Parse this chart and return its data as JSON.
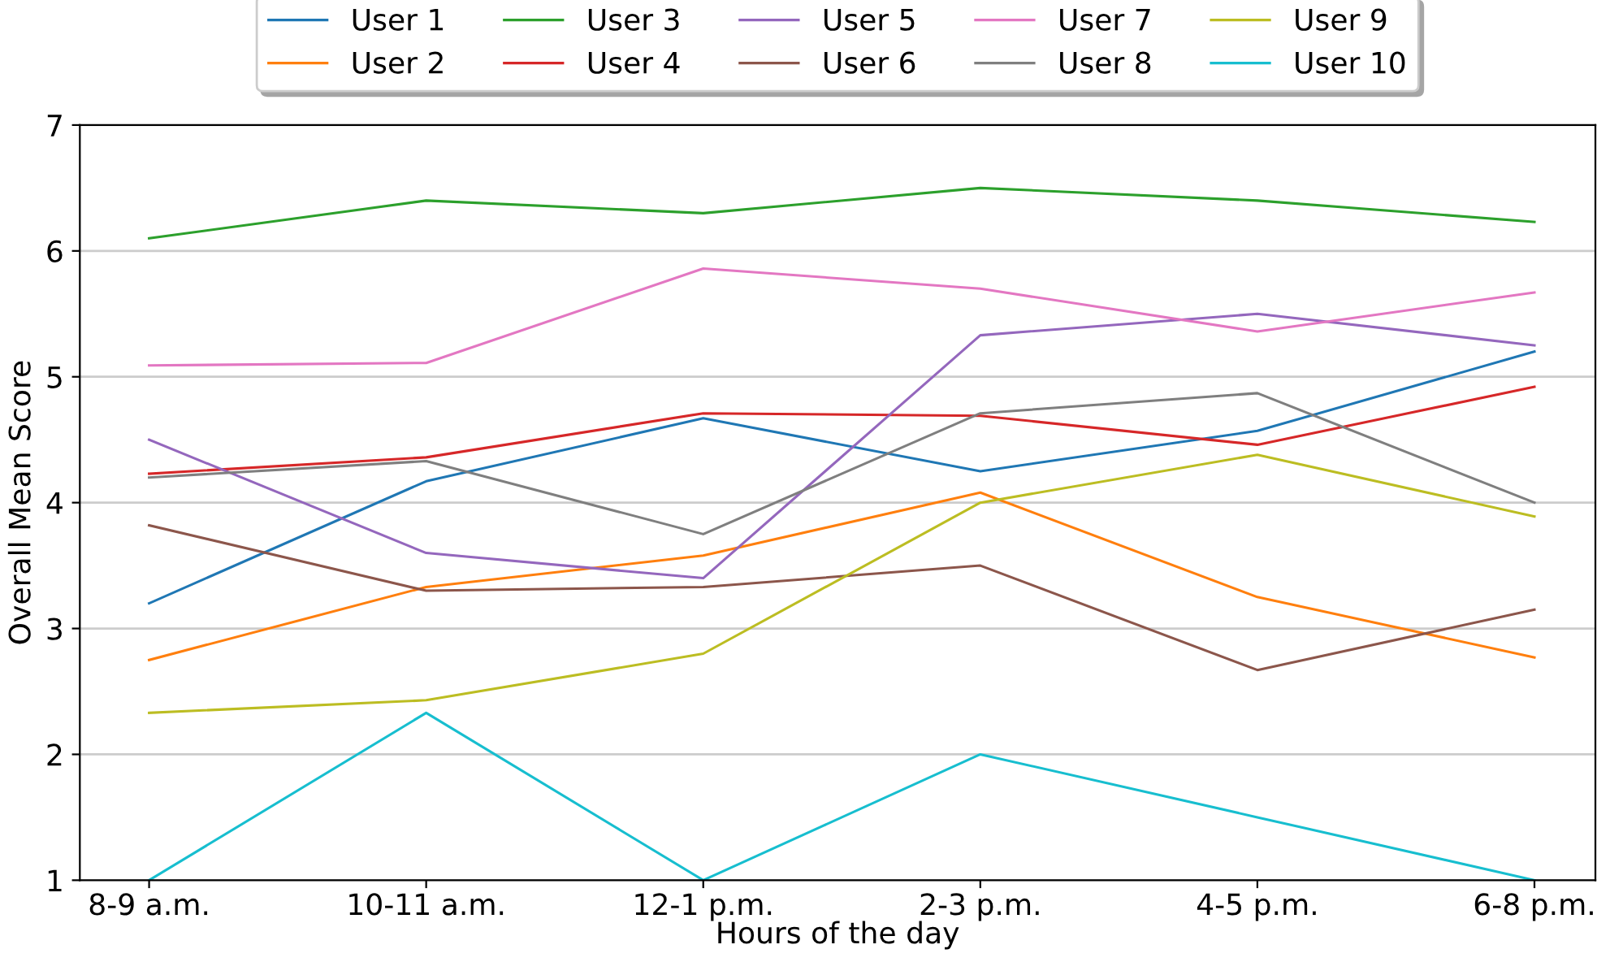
{
  "chart_data": {
    "type": "line",
    "xlabel": "Hours of the day",
    "ylabel": "Overall Mean Score",
    "categories": [
      "8-9 a.m.",
      "10-11 a.m.",
      "12-1 p.m.",
      "2-3 p.m.",
      "4-5 p.m.",
      "6-8 p.m."
    ],
    "ylim": [
      1,
      7
    ],
    "yticks": [
      1,
      2,
      3,
      4,
      5,
      6,
      7
    ],
    "grid": "y",
    "legend": "top",
    "marker": "none",
    "line_style": "solid",
    "series": [
      {
        "name": "User 1",
        "color": "#1f77b4",
        "values": [
          3.2,
          4.17,
          4.67,
          4.25,
          4.57,
          5.2
        ]
      },
      {
        "name": "User 2",
        "color": "#ff7f0e",
        "values": [
          2.75,
          3.33,
          3.58,
          4.08,
          3.25,
          2.77
        ]
      },
      {
        "name": "User 3",
        "color": "#2ca02c",
        "values": [
          6.1,
          6.4,
          6.3,
          6.5,
          6.4,
          6.23
        ]
      },
      {
        "name": "User 4",
        "color": "#d62728",
        "values": [
          4.23,
          4.36,
          4.71,
          4.69,
          4.46,
          4.92
        ]
      },
      {
        "name": "User 5",
        "color": "#9467bd",
        "values": [
          4.5,
          3.6,
          3.4,
          5.33,
          5.5,
          5.25
        ]
      },
      {
        "name": "User 6",
        "color": "#8c564b",
        "values": [
          3.82,
          3.3,
          3.33,
          3.5,
          2.67,
          3.15
        ]
      },
      {
        "name": "User 7",
        "color": "#e377c2",
        "values": [
          5.09,
          5.11,
          5.86,
          5.7,
          5.36,
          5.67
        ]
      },
      {
        "name": "User 8",
        "color": "#7f7f7f",
        "values": [
          4.2,
          4.33,
          3.75,
          4.71,
          4.87,
          4.0
        ]
      },
      {
        "name": "User 9",
        "color": "#bcbd22",
        "values": [
          2.33,
          2.43,
          2.8,
          4.0,
          4.38,
          3.89
        ]
      },
      {
        "name": "User 10",
        "color": "#17becf",
        "values": [
          1,
          2.33,
          1,
          2,
          1.5,
          1
        ]
      }
    ]
  }
}
